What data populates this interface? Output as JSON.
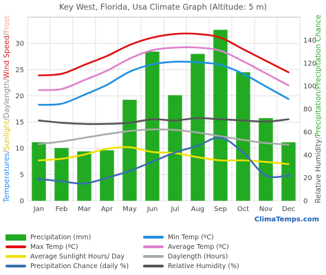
{
  "chart_data": {
    "type": "bar",
    "title": "Key West, Florida, Usa Climate Graph (Altitude: 5 m)",
    "categories": [
      "Jan",
      "Feb",
      "Mar",
      "Apr",
      "May",
      "Jun",
      "Jul",
      "Aug",
      "Sep",
      "Oct",
      "Nov",
      "Dec"
    ],
    "left_axis": {
      "ylim": [
        0,
        35
      ],
      "ticks": [
        0,
        5,
        10,
        15,
        20,
        25,
        30
      ],
      "label_parts": [
        {
          "text": "Temperatures",
          "color": "#1e90ff"
        },
        {
          "text": "/",
          "color": "#888888"
        },
        {
          "text": "Sunlight",
          "color": "#e6c200"
        },
        {
          "text": "/",
          "color": "#888888"
        },
        {
          "text": "Daylength",
          "color": "#888888"
        },
        {
          "text": "/",
          "color": "#888888"
        },
        {
          "text": "Wind Speed",
          "color": "#e02020"
        },
        {
          "text": "/",
          "color": "#888888"
        },
        {
          "text": "Frost",
          "color": "#ff9999"
        }
      ]
    },
    "right_axis": {
      "ylim": [
        0,
        160
      ],
      "ticks": [
        0,
        20,
        40,
        60,
        80,
        100,
        120,
        140
      ],
      "label_parts": [
        {
          "text": "Relative Humidity",
          "color": "#555555"
        },
        {
          "text": "/",
          "color": "#888888"
        },
        {
          "text": "Precipitation",
          "color": "#2eaa2e"
        },
        {
          "text": "/",
          "color": "#888888"
        },
        {
          "text": "Precipitation Chance",
          "color": "#2eaa2e"
        }
      ]
    },
    "bars": {
      "name": "Precipitation (mm)",
      "color": "#22aa22",
      "axis": "right",
      "values": [
        51,
        46,
        43,
        44,
        88,
        130,
        92,
        128,
        149,
        112,
        72,
        51
      ]
    },
    "series": [
      {
        "name": "Max Temp (ºC)",
        "color": "#e01010",
        "axis": "left",
        "values": [
          23.9,
          24.2,
          25.9,
          27.6,
          29.7,
          31.1,
          31.8,
          31.8,
          31.1,
          28.9,
          26.7,
          24.5
        ]
      },
      {
        "name": "Average Temp (ºC)",
        "color": "#e080d0",
        "axis": "left",
        "values": [
          21.1,
          21.3,
          23.0,
          24.8,
          27.1,
          28.7,
          29.2,
          29.2,
          28.6,
          26.6,
          24.3,
          22.0
        ]
      },
      {
        "name": "Min Temp (ºC)",
        "color": "#1e90dd",
        "axis": "left",
        "values": [
          18.3,
          18.5,
          20.2,
          22.1,
          24.6,
          26.0,
          26.5,
          26.4,
          25.9,
          24.2,
          21.8,
          19.4
        ]
      },
      {
        "name": "Daylength (Hours)",
        "color": "#aaaaaa",
        "axis": "left",
        "values": [
          10.8,
          11.3,
          12.0,
          12.7,
          13.3,
          13.6,
          13.5,
          13.0,
          12.3,
          11.6,
          11.0,
          10.7
        ]
      },
      {
        "name": "Average Sunlight Hours/ Day",
        "color": "#f0e000",
        "axis": "left",
        "values": [
          7.7,
          8.0,
          8.8,
          9.9,
          10.2,
          9.3,
          9.1,
          8.3,
          7.7,
          7.7,
          7.4,
          7.0
        ]
      },
      {
        "name": "Precipitation Chance (daily %)",
        "color": "#3a6eb0",
        "axis": "right",
        "values": [
          19,
          17,
          15,
          20,
          26,
          34,
          42,
          48,
          55,
          42,
          22,
          22
        ]
      },
      {
        "name": "Relative Humidity (%)",
        "color": "#555555",
        "axis": "right",
        "values": [
          70,
          68,
          67,
          67,
          68,
          71,
          70,
          72,
          71,
          70,
          69,
          71
        ]
      }
    ],
    "grid": true,
    "legend_position": "bottom"
  },
  "legend": {
    "items": [
      {
        "label": "Precipitation (mm)",
        "color": "#22aa22",
        "kind": "box"
      },
      {
        "label": "Min Temp (ºC)",
        "color": "#1e90dd",
        "kind": "line"
      },
      {
        "label": "Max Temp (ºC)",
        "color": "#e01010",
        "kind": "line"
      },
      {
        "label": "Average Temp (ºC)",
        "color": "#e080d0",
        "kind": "line"
      },
      {
        "label": "Average Sunlight Hours/ Day",
        "color": "#f0e000",
        "kind": "line"
      },
      {
        "label": "Daylength (Hours)",
        "color": "#aaaaaa",
        "kind": "line"
      },
      {
        "label": "Precipitation Chance (daily %)",
        "color": "#3a6eb0",
        "kind": "line"
      },
      {
        "label": "Relative Humidity (%)",
        "color": "#555555",
        "kind": "line"
      }
    ]
  },
  "watermark": "ClimaTemps.com"
}
